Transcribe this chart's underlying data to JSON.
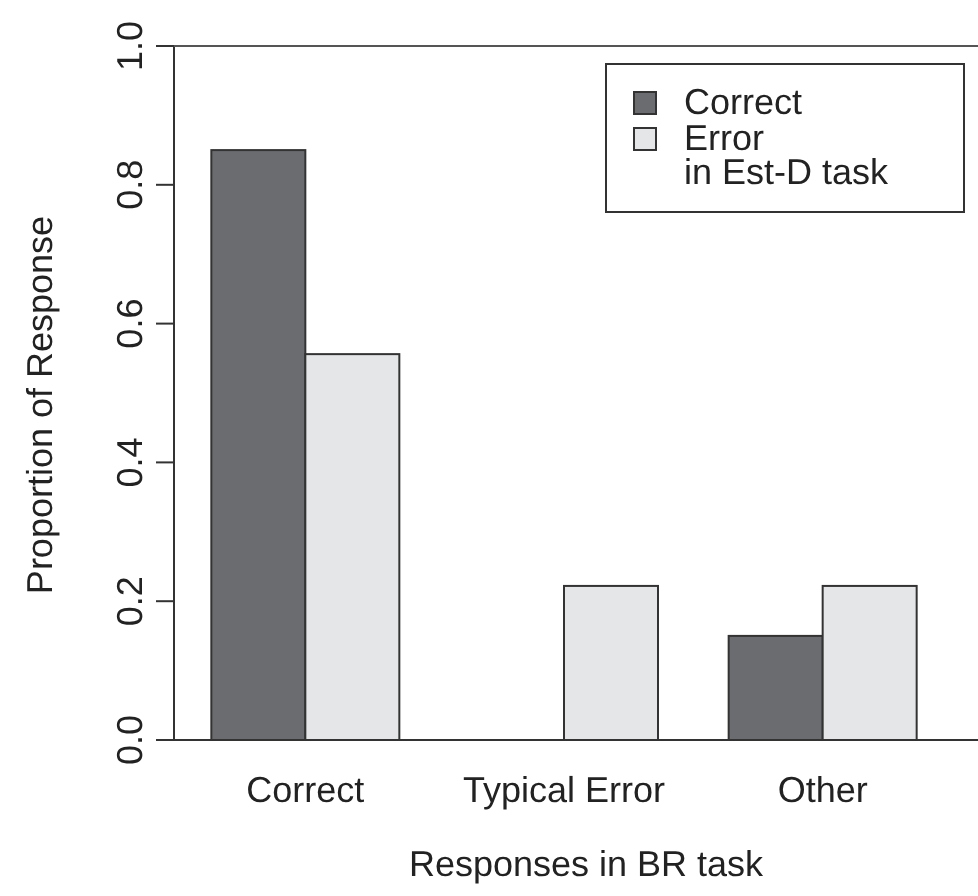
{
  "chart_data": {
    "type": "bar",
    "xlabel": "Responses in BR task",
    "ylabel": "Proportion of Response",
    "categories": [
      "Correct",
      "Typical Error",
      "Other"
    ],
    "series": [
      {
        "name": "Correct",
        "color": "#6b6c70",
        "values": [
          0.85,
          0,
          0.15
        ]
      },
      {
        "name": "Error\nin Est-D task",
        "color": "#e5e6e8",
        "values": [
          0.556,
          0.222,
          0.222
        ]
      }
    ],
    "ylim": [
      0,
      1
    ],
    "yticks": [
      {
        "value": 0,
        "label": "0.0"
      },
      {
        "value": 0.2,
        "label": "0.2"
      },
      {
        "value": 0.4,
        "label": "0.4"
      },
      {
        "value": 0.6,
        "label": "0.6"
      },
      {
        "value": 0.8,
        "label": "0.8"
      },
      {
        "value": 1,
        "label": "1.0"
      }
    ],
    "legend": "top right"
  }
}
